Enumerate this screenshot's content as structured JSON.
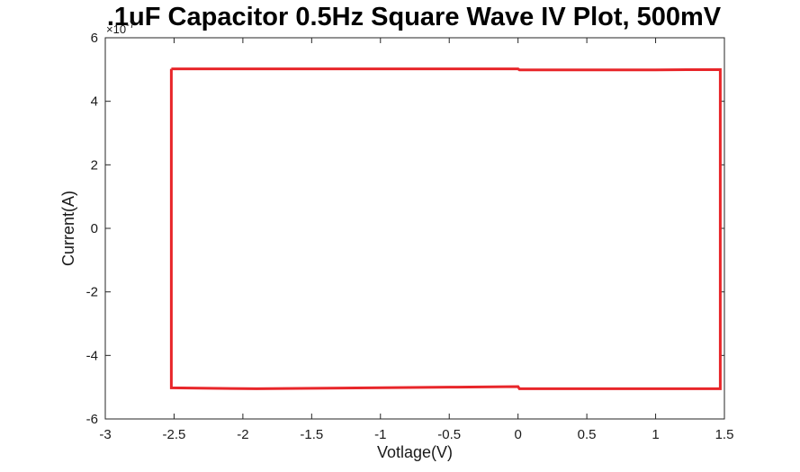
{
  "chart_data": {
    "type": "line",
    "title": ".1uF Capacitor 0.5Hz Square Wave IV Plot, 500mV",
    "xlabel": "Votlage(V)",
    "ylabel": "Current(A)",
    "xlim": [
      -3,
      1.5
    ],
    "ylim": [
      -6,
      6
    ],
    "y_multiplier_label": "×10",
    "y_multiplier_exponent": "-7",
    "x_ticks": [
      -3,
      -2.5,
      -2,
      -1.5,
      -1,
      -0.5,
      0,
      0.5,
      1,
      1.5
    ],
    "x_tick_labels": [
      "-3",
      "-2.5",
      "-2",
      "-1.5",
      "-1",
      "-0.5",
      "0",
      "0.5",
      "1",
      "1.5"
    ],
    "y_ticks": [
      -6,
      -4,
      -2,
      0,
      2,
      4,
      6
    ],
    "y_tick_labels": [
      "-6",
      "-4",
      "-2",
      "0",
      "2",
      "4",
      "6"
    ],
    "grid": false,
    "series": [
      {
        "color": "#e8262a",
        "x": [
          -2.52,
          -0.5,
          0,
          0.01,
          1.0,
          1.47,
          1.47,
          1.0,
          0.01,
          0,
          -0.5,
          -1.9,
          -2.52,
          -2.52
        ],
        "y": [
          5.02,
          5.02,
          5.02,
          4.99,
          4.99,
          5.0,
          -5.05,
          -5.05,
          -5.05,
          -4.98,
          -5.0,
          -5.05,
          -5.02,
          5.02
        ]
      }
    ]
  }
}
